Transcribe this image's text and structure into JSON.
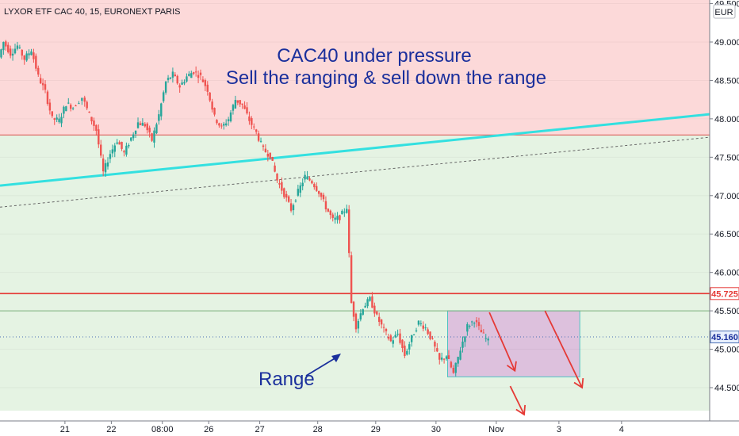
{
  "header": {
    "symbol_line": "LYXOR ETF CAC 40, 15, EURONEXT PARIS"
  },
  "annotations": {
    "headline_1": "CAC40 under pressure",
    "headline_2": "Sell the ranging & sell down the range",
    "range_label": "Range"
  },
  "price_axis": {
    "currency": "EUR",
    "labels": [
      "49.500",
      "49.000",
      "48.500",
      "48.000",
      "47.500",
      "47.000",
      "46.500",
      "46.000",
      "45.500",
      "45.000",
      "44.500"
    ],
    "current_price_tag": "45.160",
    "resistance_tag": "45.725"
  },
  "time_axis": {
    "labels": [
      "21",
      "22",
      "08:00",
      "26",
      "27",
      "28",
      "29",
      "30",
      "Nov",
      "3",
      "4"
    ]
  },
  "colors": {
    "red_zone": "#fcd9d9",
    "green_zone": "#e5f3e3",
    "range_box": "#dcb7dc",
    "trendline": "#33e0e0",
    "resistance": "#e53935",
    "candle_up": "#26a69a",
    "candle_down": "#ef5350",
    "arrows": "#e53935",
    "annotation_text": "#1a2f9c"
  },
  "chart_data": {
    "type": "candlestick",
    "title": "LYXOR ETF CAC 40, 15, EURONEXT PARIS",
    "ylabel": "EUR",
    "ylim": [
      44.2,
      49.55
    ],
    "y_ticks": [
      44.5,
      45.0,
      45.5,
      46.0,
      46.5,
      47.0,
      47.5,
      48.0,
      48.5,
      49.0,
      49.5
    ],
    "zones": [
      {
        "name": "red_zone",
        "from": 47.79,
        "to": 49.55
      },
      {
        "name": "green_zone",
        "from": 44.2,
        "to": 47.79
      }
    ],
    "levels": [
      {
        "name": "resistance",
        "value": 45.725
      },
      {
        "name": "range_top",
        "value": 45.5
      },
      {
        "name": "current",
        "value": 45.16
      }
    ],
    "range_box": {
      "from_x": 28.15,
      "to_x": 31.0,
      "low": 44.64,
      "high": 45.5
    },
    "trendlines": [
      {
        "name": "cyan_trend",
        "x": [
          18.5,
          33.8
        ],
        "y": [
          47.13,
          48.06
        ]
      },
      {
        "name": "dashed_trend",
        "x": [
          18.5,
          33.8
        ],
        "y": [
          46.85,
          47.76
        ]
      }
    ],
    "path_points": [
      [
        18.5,
        48.8
      ],
      [
        18.6,
        49.0
      ],
      [
        18.75,
        48.85
      ],
      [
        18.9,
        48.95
      ],
      [
        19.05,
        48.78
      ],
      [
        19.2,
        48.9
      ],
      [
        19.35,
        48.55
      ],
      [
        19.5,
        48.35
      ],
      [
        19.65,
        48.0
      ],
      [
        19.8,
        47.98
      ],
      [
        19.95,
        48.2
      ],
      [
        20.1,
        48.15
      ],
      [
        20.3,
        48.28
      ],
      [
        20.45,
        48.05
      ],
      [
        20.6,
        47.85
      ],
      [
        20.75,
        47.3
      ],
      [
        20.9,
        47.55
      ],
      [
        21.05,
        47.72
      ],
      [
        21.2,
        47.55
      ],
      [
        21.35,
        47.75
      ],
      [
        21.5,
        47.95
      ],
      [
        21.65,
        47.92
      ],
      [
        21.8,
        47.72
      ],
      [
        21.95,
        48.05
      ],
      [
        22.1,
        48.48
      ],
      [
        22.25,
        48.58
      ],
      [
        22.4,
        48.42
      ],
      [
        22.55,
        48.55
      ],
      [
        22.7,
        48.62
      ],
      [
        22.85,
        48.55
      ],
      [
        23.0,
        48.38
      ],
      [
        23.15,
        48.02
      ],
      [
        23.3,
        47.88
      ],
      [
        23.45,
        48.0
      ],
      [
        23.6,
        48.25
      ],
      [
        23.75,
        48.18
      ],
      [
        23.9,
        47.98
      ],
      [
        24.05,
        47.82
      ],
      [
        24.2,
        47.6
      ],
      [
        24.35,
        47.52
      ],
      [
        24.5,
        47.2
      ],
      [
        24.65,
        47.02
      ],
      [
        24.8,
        46.82
      ],
      [
        24.95,
        47.05
      ],
      [
        25.1,
        47.25
      ],
      [
        25.25,
        47.18
      ],
      [
        25.4,
        47.05
      ],
      [
        25.55,
        46.85
      ],
      [
        25.7,
        46.68
      ],
      [
        25.85,
        46.72
      ],
      [
        26.0,
        46.85
      ],
      [
        26.1,
        45.6
      ],
      [
        26.2,
        45.3
      ],
      [
        26.35,
        45.55
      ],
      [
        26.5,
        45.65
      ],
      [
        26.65,
        45.42
      ],
      [
        26.8,
        45.25
      ],
      [
        26.95,
        45.1
      ],
      [
        27.1,
        45.2
      ],
      [
        27.25,
        44.92
      ],
      [
        27.4,
        45.15
      ],
      [
        27.55,
        45.35
      ],
      [
        27.7,
        45.28
      ],
      [
        27.85,
        45.1
      ],
      [
        28.0,
        44.85
      ],
      [
        28.15,
        44.92
      ],
      [
        28.3,
        44.68
      ],
      [
        28.45,
        45.0
      ],
      [
        28.6,
        45.3
      ],
      [
        28.75,
        45.38
      ],
      [
        28.9,
        45.22
      ],
      [
        29.05,
        45.1
      ]
    ],
    "projection_arrows": [
      {
        "from": [
          29.05,
          45.48
        ],
        "to": [
          29.6,
          44.72
        ]
      },
      {
        "from": [
          29.5,
          44.52
        ],
        "to": [
          29.8,
          44.15
        ]
      },
      {
        "from": [
          30.25,
          45.5
        ],
        "to": [
          31.05,
          44.5
        ]
      }
    ],
    "x_tick_labels": [
      "21",
      "22",
      "08:00",
      "26",
      "27",
      "28",
      "29",
      "30",
      "Nov",
      "3",
      "4"
    ]
  }
}
